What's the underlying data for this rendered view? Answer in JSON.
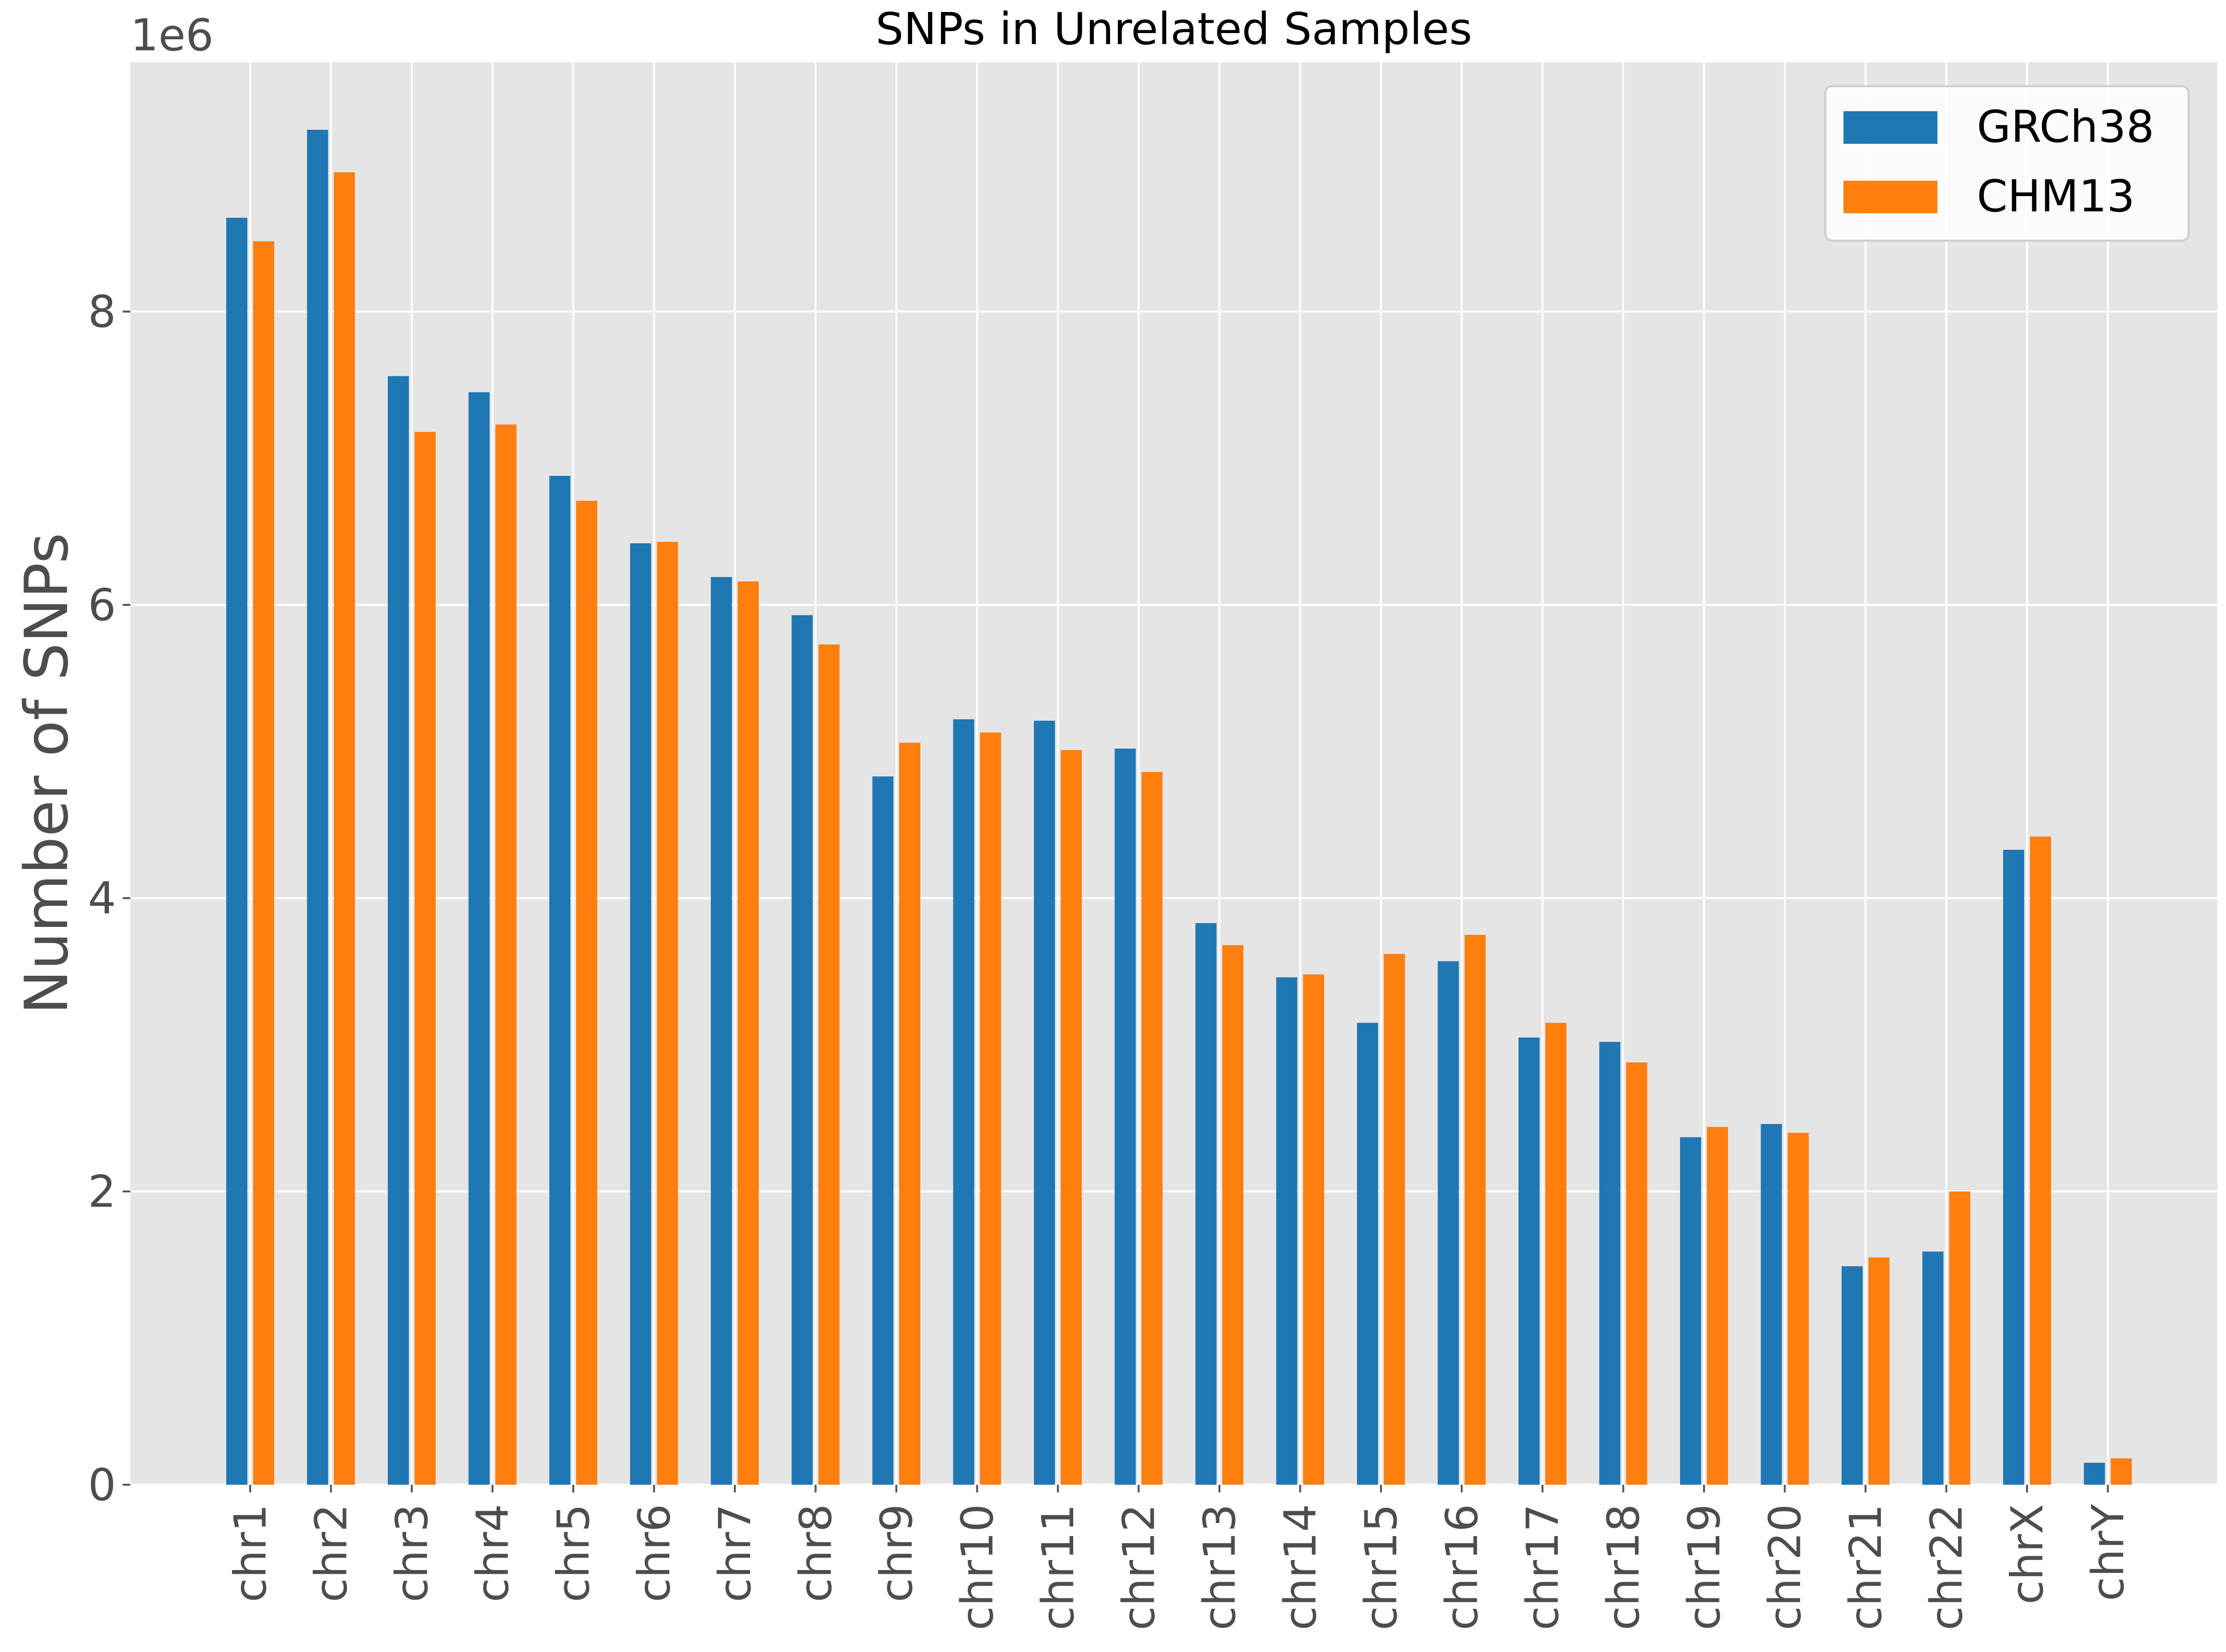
{
  "chart_data": {
    "type": "bar",
    "title": "SNPs in Unrelated Samples",
    "xlabel": "",
    "ylabel": "Number of SNPs",
    "offset_label": "1e6",
    "ylim": [
      0,
      9.7
    ],
    "yticks": [
      0,
      2,
      4,
      6,
      8
    ],
    "grid": true,
    "legend_position": "top-right",
    "categories": [
      "chr1",
      "chr2",
      "chr3",
      "chr4",
      "chr5",
      "chr6",
      "chr7",
      "chr8",
      "chr9",
      "chr10",
      "chr11",
      "chr12",
      "chr13",
      "chr14",
      "chr15",
      "chr16",
      "chr17",
      "chr18",
      "chr19",
      "chr20",
      "chr21",
      "chr22",
      "chrX",
      "chrY"
    ],
    "series": [
      {
        "name": "GRCh38",
        "color": "#1f77b4",
        "values": [
          8.64,
          9.24,
          7.56,
          7.45,
          6.88,
          6.42,
          6.19,
          5.93,
          4.83,
          5.22,
          5.21,
          5.02,
          3.83,
          3.46,
          3.15,
          3.57,
          3.05,
          3.02,
          2.37,
          2.46,
          1.49,
          1.59,
          4.33,
          0.15
        ]
      },
      {
        "name": "CHM13",
        "color": "#ff7f0e",
        "values": [
          8.48,
          8.95,
          7.18,
          7.23,
          6.71,
          6.43,
          6.16,
          5.73,
          5.06,
          5.13,
          5.01,
          4.86,
          3.68,
          3.48,
          3.62,
          3.75,
          3.15,
          2.88,
          2.44,
          2.4,
          1.55,
          2.0,
          4.42,
          0.18
        ]
      }
    ]
  }
}
